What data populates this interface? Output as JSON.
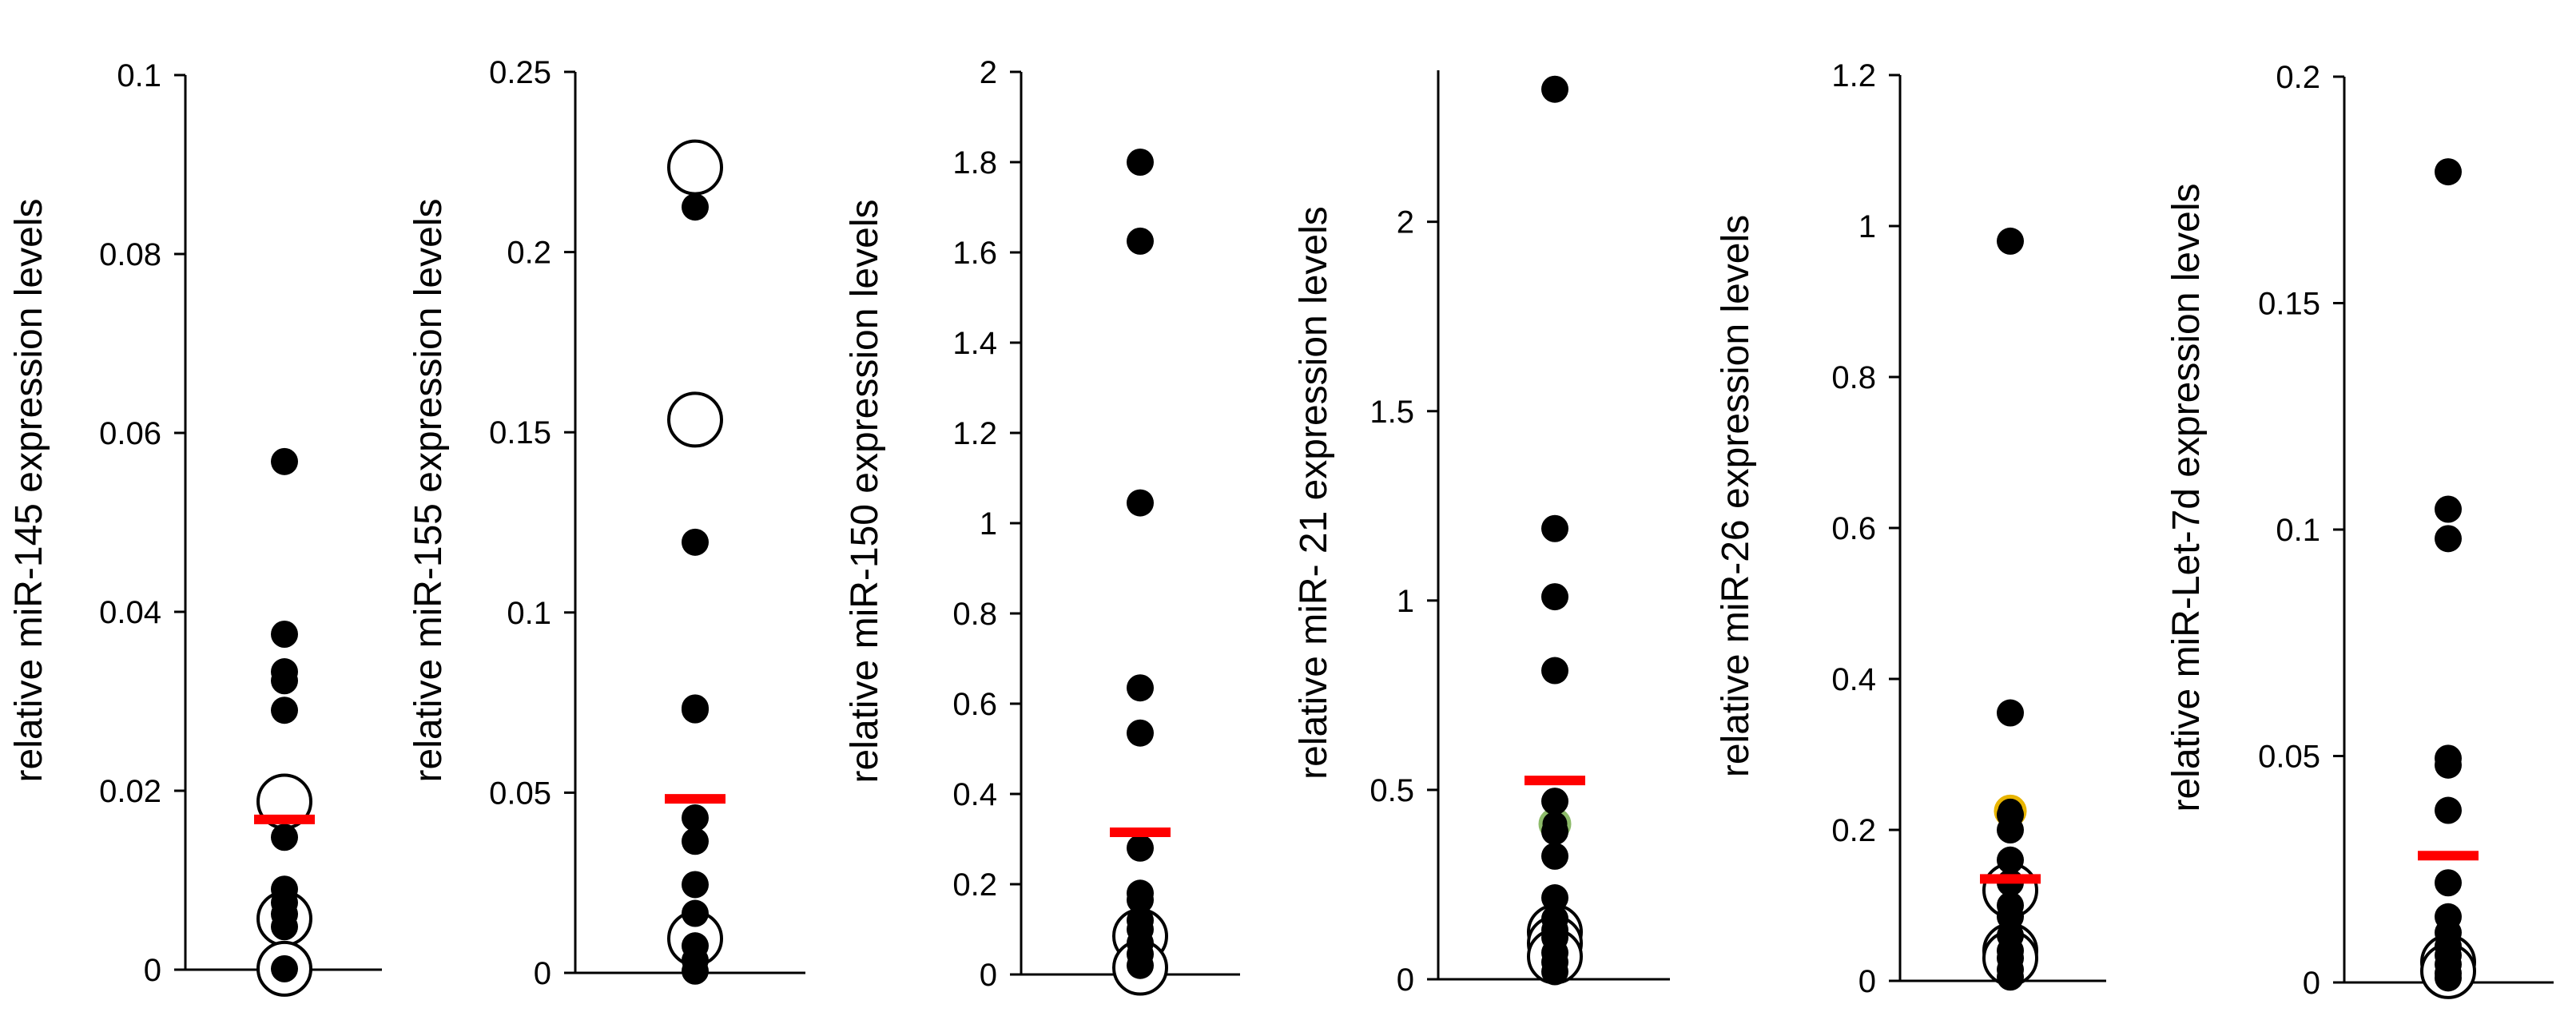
{
  "colors": {
    "axis": "#000000",
    "filled_point": "#000000",
    "open_point_stroke": "#000000",
    "open_point_fill": "#ffffff",
    "mean_bar": "#ff0000",
    "highlight_yellow": "#e8b400",
    "highlight_green": "#8dbb6a"
  },
  "chart_data": [
    {
      "type": "scatter",
      "ylabel": "relative miR-145  expression levels",
      "ylim": [
        0,
        0.1
      ],
      "yticks": [
        0,
        0.02,
        0.04,
        0.06,
        0.08,
        0.1
      ],
      "ytick_labels": [
        "0",
        "0.02",
        "0.04",
        "0.06",
        "0.08",
        "0.1"
      ],
      "mean": 0.0168,
      "filled_points": [
        0.0568,
        0.0375,
        0.0333,
        0.0323,
        0.029,
        0.0148,
        0.009,
        0.0075,
        0.0062,
        0.0048,
        0.0001
      ],
      "open_points": [
        0.0188,
        0.0057,
        0.0001
      ]
    },
    {
      "type": "scatter",
      "ylabel": "relative miR-155  expression  levels",
      "ylim": [
        0,
        0.25
      ],
      "yticks": [
        0,
        0.05,
        0.1,
        0.15,
        0.2,
        0.25
      ],
      "ytick_labels": [
        "0",
        "0.05",
        "0.1",
        "0.15",
        "0.2",
        "0.25"
      ],
      "mean": 0.0483,
      "filled_points": [
        0.2125,
        0.1195,
        0.0735,
        0.073,
        0.043,
        0.0365,
        0.0245,
        0.0165,
        0.0075,
        0.0035,
        0.0005
      ],
      "open_points": [
        0.2235,
        0.1535,
        0.0095
      ]
    },
    {
      "type": "scatter",
      "ylabel": "relative miR-150  expression  levels",
      "ylim": [
        0,
        2
      ],
      "yticks": [
        0,
        0.2,
        0.4,
        0.6,
        0.8,
        1,
        1.2,
        1.4,
        1.6,
        1.8,
        2
      ],
      "ytick_labels": [
        "0",
        "0.2",
        "0.4",
        "0.6",
        "0.8",
        "1",
        "1.2",
        "1.4",
        "1.6",
        "1.8",
        "2"
      ],
      "mean": 0.315,
      "filled_points": [
        1.8,
        1.625,
        1.045,
        0.635,
        0.535,
        0.28,
        0.18,
        0.165,
        0.12,
        0.1,
        0.07,
        0.045,
        0.02
      ],
      "open_points": [
        0.085,
        0.015
      ]
    },
    {
      "type": "scatter",
      "ylabel": "relative miR- 21 expression levels",
      "ylim": [
        0,
        2.4
      ],
      "yticks": [
        0,
        0.5,
        1,
        1.5,
        2
      ],
      "ytick_labels": [
        "0",
        "0.5",
        "1",
        "1.5",
        "2"
      ],
      "mean": 0.525,
      "filled_points": [
        2.35,
        1.19,
        1.01,
        0.815,
        0.47,
        0.39,
        0.325,
        0.215,
        0.16,
        0.13,
        0.11,
        0.07,
        0.045,
        0.02
      ],
      "open_points": [
        0.125,
        0.095,
        0.06
      ],
      "highlight_points": [
        {
          "value": 0.41,
          "color": "#8dbb6a"
        }
      ]
    },
    {
      "type": "scatter",
      "ylabel": "relative miR-26 expression levels",
      "ylim": [
        0,
        1.2
      ],
      "yticks": [
        0,
        0.2,
        0.4,
        0.6,
        0.8,
        1,
        1.2
      ],
      "ytick_labels": [
        "0",
        "0.2",
        "0.4",
        "0.6",
        "0.8",
        "1",
        "1.2"
      ],
      "mean": 0.135,
      "filled_points": [
        0.98,
        0.355,
        0.22,
        0.2,
        0.16,
        0.13,
        0.1,
        0.085,
        0.06,
        0.04,
        0.03,
        0.015,
        0.005
      ],
      "open_points": [
        0.12,
        0.04,
        0.03
      ],
      "highlight_points": [
        {
          "value": 0.225,
          "color": "#e8b400"
        }
      ]
    },
    {
      "type": "scatter",
      "ylabel": "relative miR-Let-7d  expression levels",
      "ylim": [
        0,
        0.2
      ],
      "yticks": [
        0,
        0.05,
        0.1,
        0.15,
        0.2
      ],
      "ytick_labels": [
        "0",
        "0.05",
        "0.1",
        "0.15",
        "0.2"
      ],
      "mean": 0.028,
      "filled_points": [
        0.179,
        0.1045,
        0.098,
        0.0495,
        0.048,
        0.038,
        0.022,
        0.0145,
        0.011,
        0.008,
        0.006,
        0.004,
        0.002,
        0.001
      ],
      "open_points": [
        0.0045,
        0.0025
      ]
    }
  ]
}
